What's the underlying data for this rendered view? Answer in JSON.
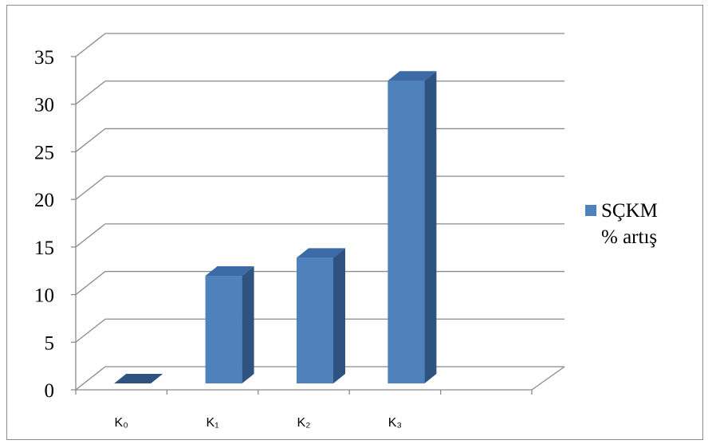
{
  "chart_data": {
    "type": "bar",
    "categories": [
      "K₀",
      "K₁",
      "K₂",
      "K₃"
    ],
    "series": [
      {
        "name": "SÇKM % artış",
        "values": [
          0,
          11.3,
          13.2,
          31.8
        ]
      }
    ],
    "ylim": [
      0,
      35
    ],
    "yticks": [
      "0",
      "5",
      "10",
      "15",
      "20",
      "25",
      "30",
      "35"
    ],
    "grid": true,
    "legend_position": "right",
    "legend_lines": [
      "SÇKM",
      "% artış"
    ],
    "colors": {
      "front": "#4f81bd",
      "side": "#2f5380",
      "top": "#3b6aa6",
      "grid": "#8a8a8a"
    }
  }
}
